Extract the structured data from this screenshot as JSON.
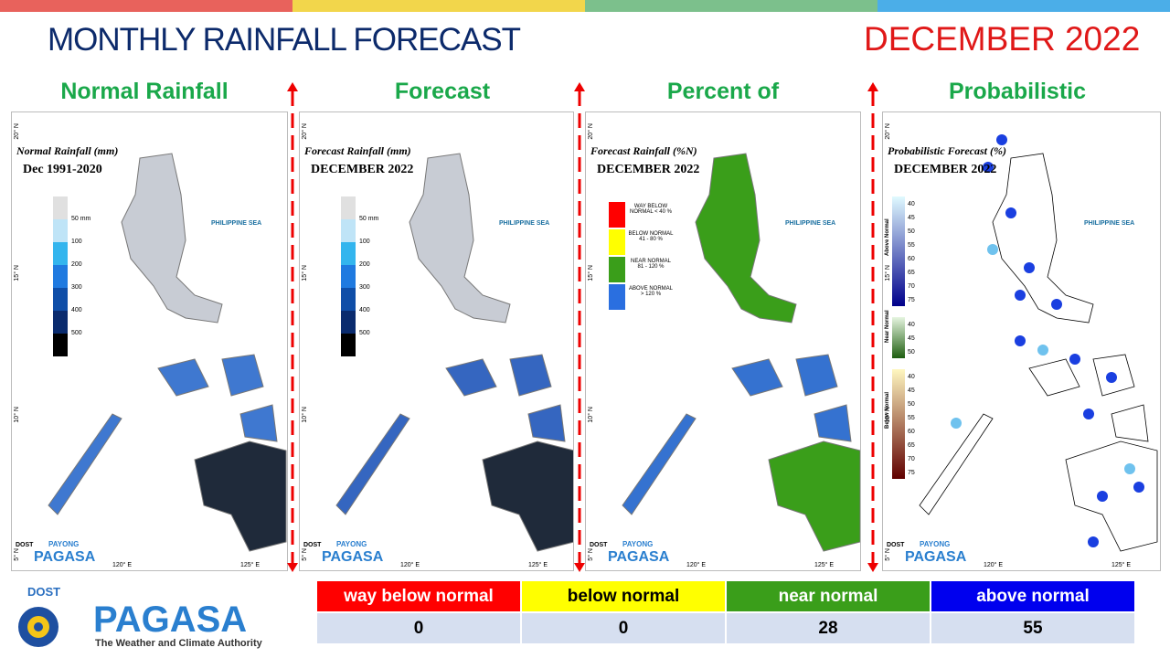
{
  "header": {
    "title": "MONTHLY RAINFALL FORECAST",
    "period": "DECEMBER 2022"
  },
  "panels": [
    {
      "heading": "Normal Rainfall",
      "map_title": "Normal Rainfall (mm)",
      "map_period": "Dec 1991-2020",
      "legend": [
        "50 mm",
        "100",
        "200",
        "300",
        "400",
        "500"
      ]
    },
    {
      "heading": "Forecast Rainfall",
      "map_title": "Forecast Rainfall (mm)",
      "map_period": "DECEMBER 2022",
      "legend": [
        "50 mm",
        "100",
        "200",
        "300",
        "400",
        "500"
      ]
    },
    {
      "heading": "Percent of Normal",
      "map_title": "Forecast Rainfall (%N)",
      "map_period": "DECEMBER 2022",
      "legend": [
        "WAY BELOW NORMAL < 40 %",
        "BELOW NORMAL 41 - 80 %",
        "NEAR NORMAL 81 - 120 %",
        "ABOVE NORMAL > 120 %"
      ]
    },
    {
      "heading": "Probabilistic",
      "map_title": "Probabilistic Forecast (%)",
      "map_period": "DECEMBER 2022",
      "legend_groups": [
        {
          "name": "Above Normal",
          "labels": [
            40,
            45,
            50,
            55,
            60,
            65,
            70,
            75
          ]
        },
        {
          "name": "Near Normal",
          "labels": [
            40,
            45,
            50
          ]
        },
        {
          "name": "Below Normal",
          "labels": [
            40,
            45,
            50,
            55,
            60,
            65,
            70,
            75
          ]
        }
      ]
    }
  ],
  "map_labels": {
    "sea": "PHILIPPINE SEA",
    "lat": [
      "20° N",
      "15° N",
      "10° N",
      "5° N"
    ],
    "lon": [
      "120° E",
      "125° E"
    ],
    "brand_top": "PAYONG",
    "brand": "PAGASA",
    "agency": "DOST"
  },
  "table": {
    "headers": [
      "way below normal",
      "below normal",
      "near normal",
      "above normal"
    ],
    "values": [
      0,
      0,
      28,
      55
    ]
  },
  "logo": {
    "agency": "DOST",
    "name": "PAGASA",
    "tagline": "The Weather and Climate Authority"
  }
}
